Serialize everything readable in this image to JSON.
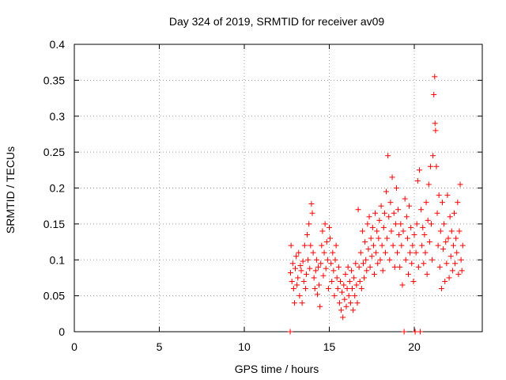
{
  "chart_data": {
    "type": "scatter",
    "title": "Day 324 of 2019, SRMTID for receiver av09",
    "xlabel": "GPS time / hours",
    "ylabel": "SRMTID / TECUs",
    "xlim": [
      0,
      24
    ],
    "ylim": [
      0,
      0.4
    ],
    "xticks": [
      0,
      5,
      10,
      15,
      20
    ],
    "xtick_labels": [
      "0",
      "5",
      "10",
      "15",
      "20"
    ],
    "yticks": [
      0,
      0.05,
      0.1,
      0.15,
      0.2,
      0.25,
      0.3,
      0.35,
      0.4
    ],
    "ytick_labels": [
      "0",
      "0.05",
      "0.1",
      "0.15",
      "0.2",
      "0.25",
      "0.3",
      "0.35",
      "0.4"
    ],
    "grid": true,
    "marker": "plus",
    "marker_color": "#ff0000",
    "series": [
      {
        "name": "SRMTID",
        "points": [
          [
            12.7,
            0.0
          ],
          [
            12.75,
            0.12
          ],
          [
            12.72,
            0.082
          ],
          [
            12.8,
            0.07
          ],
          [
            12.85,
            0.095
          ],
          [
            12.9,
            0.06
          ],
          [
            12.95,
            0.04
          ],
          [
            13.0,
            0.088
          ],
          [
            13.05,
            0.105
          ],
          [
            13.1,
            0.065
          ],
          [
            13.15,
            0.075
          ],
          [
            13.2,
            0.11
          ],
          [
            13.25,
            0.05
          ],
          [
            13.3,
            0.092
          ],
          [
            13.35,
            0.085
          ],
          [
            13.4,
            0.04
          ],
          [
            13.45,
            0.098
          ],
          [
            13.5,
            0.07
          ],
          [
            13.55,
            0.12
          ],
          [
            13.6,
            0.06
          ],
          [
            13.65,
            0.08
          ],
          [
            13.7,
            0.135
          ],
          [
            13.75,
            0.1
          ],
          [
            13.8,
            0.15
          ],
          [
            13.85,
            0.088
          ],
          [
            13.9,
            0.12
          ],
          [
            13.95,
            0.178
          ],
          [
            14.0,
            0.165
          ],
          [
            14.05,
            0.11
          ],
          [
            14.1,
            0.075
          ],
          [
            14.15,
            0.06
          ],
          [
            14.2,
            0.085
          ],
          [
            14.25,
            0.1
          ],
          [
            14.3,
            0.052
          ],
          [
            14.35,
            0.09
          ],
          [
            14.4,
            0.065
          ],
          [
            14.45,
            0.035
          ],
          [
            14.5,
            0.095
          ],
          [
            14.55,
            0.12
          ],
          [
            14.6,
            0.14
          ],
          [
            14.65,
            0.078
          ],
          [
            14.7,
            0.11
          ],
          [
            14.75,
            0.15
          ],
          [
            14.8,
            0.088
          ],
          [
            14.85,
            0.125
          ],
          [
            14.9,
            0.1
          ],
          [
            14.95,
            0.06
          ],
          [
            15.0,
            0.145
          ],
          [
            15.05,
            0.13
          ],
          [
            15.1,
            0.095
          ],
          [
            15.15,
            0.07
          ],
          [
            15.2,
            0.11
          ],
          [
            15.25,
            0.085
          ],
          [
            15.3,
            0.05
          ],
          [
            15.35,
            0.1
          ],
          [
            15.4,
            0.12
          ],
          [
            15.45,
            0.075
          ],
          [
            15.5,
            0.06
          ],
          [
            15.55,
            0.09
          ],
          [
            15.6,
            0.04
          ],
          [
            15.65,
            0.07
          ],
          [
            15.7,
            0.03
          ],
          [
            15.75,
            0.055
          ],
          [
            15.8,
            0.02
          ],
          [
            15.85,
            0.065
          ],
          [
            15.9,
            0.045
          ],
          [
            15.95,
            0.08
          ],
          [
            16.0,
            0.035
          ],
          [
            16.05,
            0.06
          ],
          [
            16.1,
            0.09
          ],
          [
            16.15,
            0.05
          ],
          [
            16.2,
            0.07
          ],
          [
            16.25,
            0.04
          ],
          [
            16.3,
            0.085
          ],
          [
            16.35,
            0.06
          ],
          [
            16.4,
            0.03
          ],
          [
            16.45,
            0.075
          ],
          [
            16.5,
            0.05
          ],
          [
            16.55,
            0.095
          ],
          [
            16.6,
            0.065
          ],
          [
            16.65,
            0.04
          ],
          [
            16.7,
            0.17
          ],
          [
            16.75,
            0.09
          ],
          [
            16.8,
            0.07
          ],
          [
            16.85,
            0.11
          ],
          [
            16.9,
            0.06
          ],
          [
            16.95,
            0.14
          ],
          [
            17.0,
            0.095
          ],
          [
            17.05,
            0.075
          ],
          [
            17.1,
            0.125
          ],
          [
            17.15,
            0.1
          ],
          [
            17.2,
            0.085
          ],
          [
            17.25,
            0.15
          ],
          [
            17.3,
            0.115
          ],
          [
            17.35,
            0.16
          ],
          [
            17.4,
            0.09
          ],
          [
            17.45,
            0.13
          ],
          [
            17.5,
            0.105
          ],
          [
            17.55,
            0.145
          ],
          [
            17.6,
            0.12
          ],
          [
            17.65,
            0.08
          ],
          [
            17.7,
            0.165
          ],
          [
            17.75,
            0.11
          ],
          [
            17.8,
            0.14
          ],
          [
            17.85,
            0.095
          ],
          [
            17.9,
            0.13
          ],
          [
            17.95,
            0.155
          ],
          [
            18.0,
            0.1
          ],
          [
            18.05,
            0.175
          ],
          [
            18.1,
            0.12
          ],
          [
            18.15,
            0.085
          ],
          [
            18.2,
            0.145
          ],
          [
            18.25,
            0.165
          ],
          [
            18.3,
            0.11
          ],
          [
            18.35,
            0.195
          ],
          [
            18.4,
            0.13
          ],
          [
            18.45,
            0.245
          ],
          [
            18.5,
            0.16
          ],
          [
            18.55,
            0.1
          ],
          [
            18.6,
            0.18
          ],
          [
            18.65,
            0.14
          ],
          [
            18.7,
            0.215
          ],
          [
            18.75,
            0.12
          ],
          [
            18.8,
            0.165
          ],
          [
            18.85,
            0.09
          ],
          [
            18.9,
            0.15
          ],
          [
            18.95,
            0.2
          ],
          [
            19.0,
            0.11
          ],
          [
            19.05,
            0.17
          ],
          [
            19.1,
            0.135
          ],
          [
            19.15,
            0.09
          ],
          [
            19.2,
            0.15
          ],
          [
            19.25,
            0.12
          ],
          [
            19.3,
            0.065
          ],
          [
            19.35,
            0.14
          ],
          [
            19.4,
            0.0
          ],
          [
            19.45,
            0.185
          ],
          [
            19.5,
            0.1
          ],
          [
            19.55,
            0.16
          ],
          [
            19.6,
            0.13
          ],
          [
            19.65,
            0.08
          ],
          [
            19.7,
            0.175
          ],
          [
            19.75,
            0.11
          ],
          [
            19.8,
            0.145
          ],
          [
            19.85,
            0.095
          ],
          [
            19.9,
            0.12
          ],
          [
            19.95,
            0.07
          ],
          [
            20.0,
            0.135
          ],
          [
            20.05,
            0.0
          ],
          [
            20.1,
            0.11
          ],
          [
            20.15,
            0.15
          ],
          [
            20.2,
            0.21
          ],
          [
            20.25,
            0.09
          ],
          [
            20.3,
            0.225
          ],
          [
            20.35,
            0.0
          ],
          [
            20.4,
            0.17
          ],
          [
            20.45,
            0.12
          ],
          [
            20.5,
            0.145
          ],
          [
            20.55,
            0.095
          ],
          [
            20.6,
            0.135
          ],
          [
            20.65,
            0.11
          ],
          [
            20.7,
            0.18
          ],
          [
            20.75,
            0.08
          ],
          [
            20.8,
            0.155
          ],
          [
            20.85,
            0.205
          ],
          [
            20.9,
            0.125
          ],
          [
            20.95,
            0.23
          ],
          [
            21.0,
            0.15
          ],
          [
            21.05,
            0.1
          ],
          [
            21.1,
            0.245
          ],
          [
            21.15,
            0.33
          ],
          [
            21.2,
            0.355
          ],
          [
            21.22,
            0.29
          ],
          [
            21.25,
            0.28
          ],
          [
            21.3,
            0.23
          ],
          [
            21.35,
            0.165
          ],
          [
            21.4,
            0.12
          ],
          [
            21.45,
            0.19
          ],
          [
            21.5,
            0.09
          ],
          [
            21.55,
            0.14
          ],
          [
            21.6,
            0.06
          ],
          [
            21.65,
            0.18
          ],
          [
            21.7,
            0.115
          ],
          [
            21.75,
            0.15
          ],
          [
            21.8,
            0.07
          ],
          [
            21.85,
            0.125
          ],
          [
            21.9,
            0.095
          ],
          [
            21.95,
            0.19
          ],
          [
            22.0,
            0.13
          ],
          [
            22.05,
            0.075
          ],
          [
            22.1,
            0.16
          ],
          [
            22.15,
            0.105
          ],
          [
            22.2,
            0.14
          ],
          [
            22.25,
            0.085
          ],
          [
            22.3,
            0.12
          ],
          [
            22.35,
            0.165
          ],
          [
            22.4,
            0.095
          ],
          [
            22.45,
            0.13
          ],
          [
            22.5,
            0.11
          ],
          [
            22.55,
            0.18
          ],
          [
            22.6,
            0.08
          ],
          [
            22.65,
            0.14
          ],
          [
            22.7,
            0.205
          ],
          [
            22.75,
            0.1
          ],
          [
            22.8,
            0.085
          ],
          [
            22.85,
            0.12
          ]
        ]
      }
    ]
  }
}
